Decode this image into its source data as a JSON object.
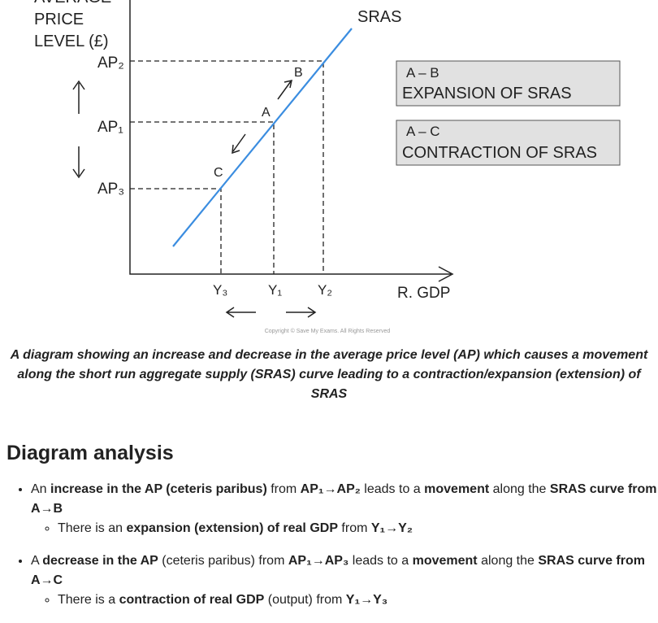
{
  "diagram": {
    "y_axis_label": [
      "AVERAGE",
      "PRICE",
      "LEVEL (£)"
    ],
    "curve_label": "SRAS",
    "price_levels": [
      "AP₂",
      "AP₁",
      "AP₃"
    ],
    "points": [
      "B",
      "A",
      "C"
    ],
    "outputs": [
      "Y₃",
      "Y₁",
      "Y₂"
    ],
    "x_axis_label": "R. GDP",
    "boxes": [
      {
        "title": "A – B",
        "text": "EXPANSION OF SRAS"
      },
      {
        "title": "A – C",
        "text": "CONTRACTION OF SRAS"
      }
    ],
    "copyright": "Copyright © Save My Exams. All Rights Reserved"
  },
  "caption": "A diagram showing an increase and decrease in the average price level (AP) which causes a movement along the short run aggregate supply (SRAS) curve leading to a contraction/expansion (extension) of SRAS",
  "section": {
    "heading": "Diagram analysis",
    "bullets": [
      {
        "segments": [
          {
            "text": "An ",
            "bold": false
          },
          {
            "text": "increase in the AP (ceteris paribus)",
            "bold": true
          },
          {
            "text": " from ",
            "bold": false
          },
          {
            "text": "AP₁→AP₂",
            "bold": true
          },
          {
            "text": " leads to a ",
            "bold": false
          },
          {
            "text": "movement",
            "bold": true
          },
          {
            "text": " along the ",
            "bold": false
          },
          {
            "text": "SRAS curve from A→B",
            "bold": true
          }
        ],
        "sub": [
          {
            "segments": [
              {
                "text": "There is an ",
                "bold": false
              },
              {
                "text": "expansion (extension) of real GDP",
                "bold": true
              },
              {
                "text": " from ",
                "bold": false
              },
              {
                "text": "Y₁→Y₂",
                "bold": true
              }
            ]
          }
        ]
      },
      {
        "segments": [
          {
            "text": "A ",
            "bold": false
          },
          {
            "text": "decrease in the AP",
            "bold": true
          },
          {
            "text": " (ceteris paribus) from ",
            "bold": false
          },
          {
            "text": "AP₁→AP₃",
            "bold": true
          },
          {
            "text": " leads to a ",
            "bold": false
          },
          {
            "text": "movement",
            "bold": true
          },
          {
            "text": " along the ",
            "bold": false
          },
          {
            "text": "SRAS curve from A→C",
            "bold": true
          }
        ],
        "sub": [
          {
            "segments": [
              {
                "text": "There is a ",
                "bold": false
              },
              {
                "text": "contraction of real GDP",
                "bold": true
              },
              {
                "text": " (output) from ",
                "bold": false
              },
              {
                "text": "Y₁→Y₃",
                "bold": true
              }
            ]
          }
        ]
      }
    ]
  }
}
